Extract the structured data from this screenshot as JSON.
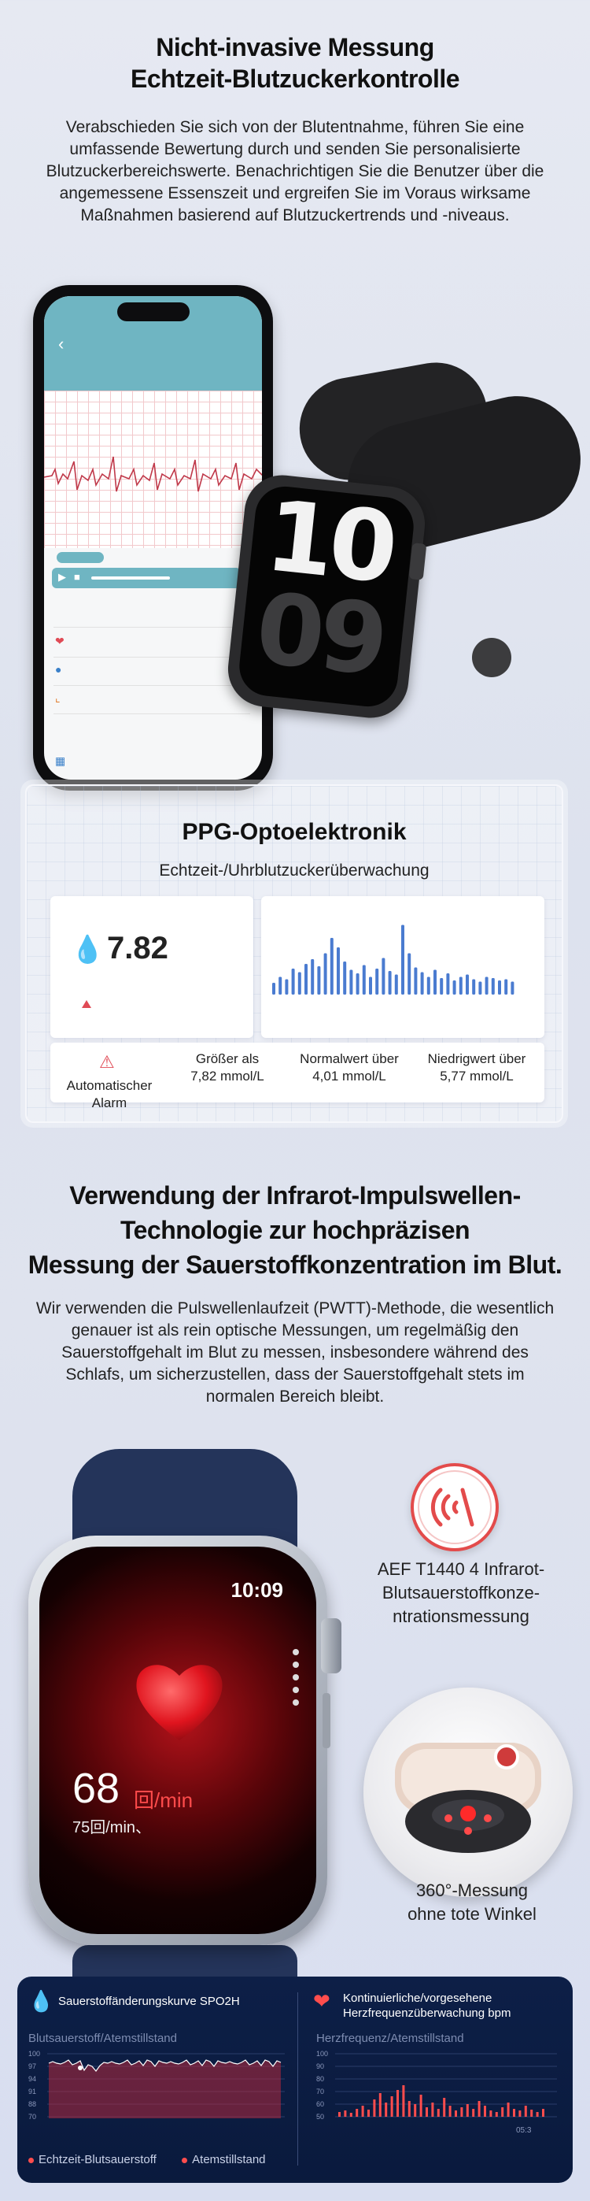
{
  "section1": {
    "title_line1": "Nicht-invasive Messung",
    "title_line2": "Echtzeit-Blutzuckerkontrolle",
    "paragraph": "Verabschieden Sie sich von der Blutentnahme, führen Sie eine umfassende Bewertung durch und senden Sie personalisierte Blutzuckerbereichswerte. Benachrichtigen Sie die Benutzer über die angemessene Essenszeit und ergreifen Sie im Voraus wirksame Maßnahmen basierend auf Blutzuckertrends und -niveaus."
  },
  "watch1": {
    "hours": "10",
    "minutes": "09"
  },
  "ppg": {
    "title": "PPG-Optoelektronik",
    "subtitle": "Echtzeit-/Uhrblutzuckerüberwachung",
    "value": "7.82",
    "alarm_label": "Automatischer Alarm",
    "col1_line1": "Größer als",
    "col1_line2": "7,82 mmol/L",
    "col2_line1": "Normalwert über",
    "col2_line2": "4,01 mmol/L",
    "col3_line1": "Niedrigwert  über",
    "col3_line2": "5,77 mmol/L",
    "chart_color": "#4a7bd0"
  },
  "section2": {
    "title_line1": "Verwendung der Infrarot-Impulswellen-",
    "title_line2": "Technologie zur hochpräzisen",
    "title_line3": "Messung der Sauerstoffkonzentration im Blut.",
    "paragraph": "Wir verwenden die Pulswellenlaufzeit (PWTT)-Methode, die wesentlich genauer ist als rein optische Messungen, um regelmäßig den Sauerstoffgehalt im Blut zu messen, insbesondere während des Schlafs, um sicherzustellen, dass der Sauerstoffgehalt stets im normalen Bereich bleibt."
  },
  "watch2": {
    "time": "10:09",
    "bpm": "68",
    "bpm_unit": "回/min",
    "sub": "75回/min、"
  },
  "features": {
    "aef_line1": "AEF T1440 4 Infrarot-",
    "aef_line2": "Blutsauerstoffkonze-",
    "aef_line3": "ntrationsmessung",
    "w360_line1": "360°-Messung",
    "w360_line2": "ohne tote Winkel"
  },
  "dashboard": {
    "left_title": "Sauerstoffänderungskurve SPO2H",
    "left_sub": "Blutsauerstoff/Atemstillstand",
    "left_legend1": "Echtzeit-Blutsauerstoff",
    "left_legend2": "Atemstillstand",
    "left_ticks": [
      "100",
      "97",
      "94",
      "91",
      "88",
      "70"
    ],
    "right_title_line1": "Kontinuierliche/vorgesehene",
    "right_title_line2": "Herzfrequenzüberwachung bpm",
    "right_sub": "Herzfrequenz/Atemstillstand",
    "right_ticks": [
      "100",
      "90",
      "80",
      "70",
      "60",
      "50"
    ],
    "right_time": "05:3",
    "accent": "#ff4d4d"
  }
}
